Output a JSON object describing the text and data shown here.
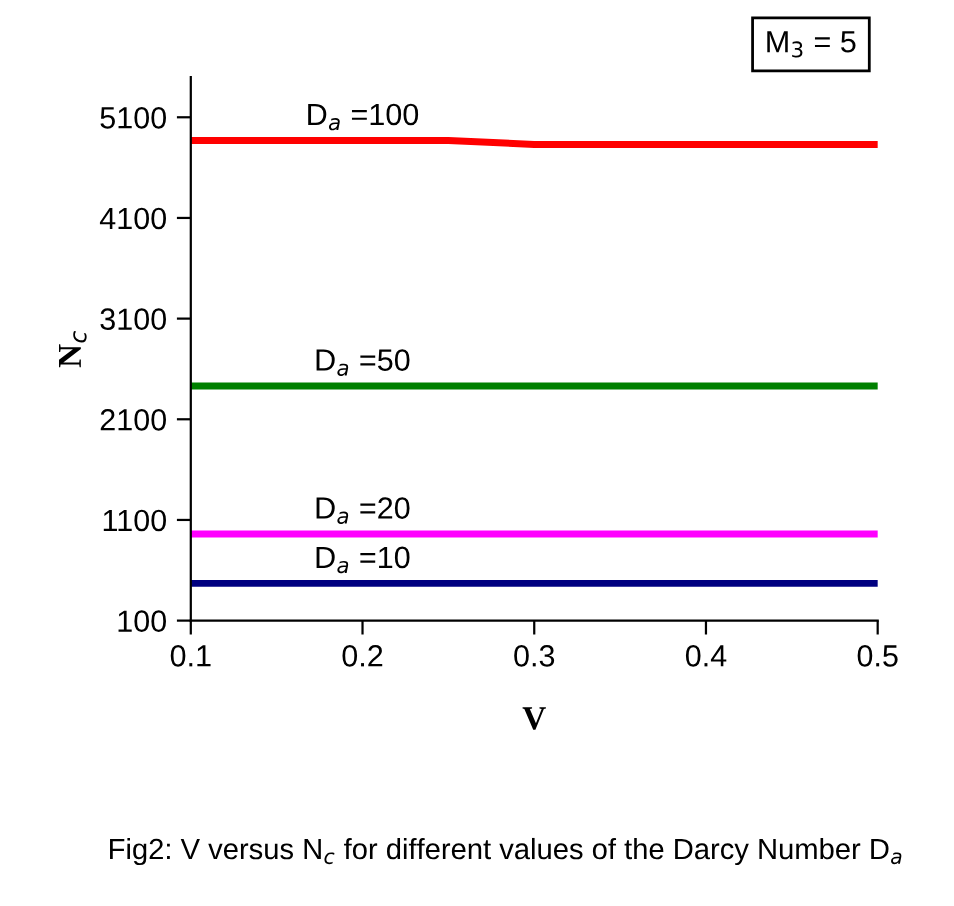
{
  "chart_data": {
    "type": "line",
    "xlabel": "V",
    "ylabel": "N$_{c}$",
    "x": [
      0.1,
      0.2,
      0.25,
      0.3,
      0.4,
      0.5
    ],
    "series": [
      {
        "name": "D$_{a}$ =100",
        "color": "#ff0000",
        "values": [
          4870,
          4870,
          4870,
          4830,
          4830,
          4830
        ]
      },
      {
        "name": "D$_{a}$ =50",
        "color": "#008000",
        "values": [
          2430,
          2430,
          2430,
          2430,
          2430,
          2430
        ]
      },
      {
        "name": "D$_{a}$ =20",
        "color": "#ff00ff",
        "values": [
          960,
          960,
          960,
          960,
          960,
          960
        ]
      },
      {
        "name": "D$_{a}$ =10",
        "color": "#000080",
        "values": [
          470,
          470,
          470,
          470,
          470,
          470
        ]
      }
    ],
    "xlim": [
      0.1,
      0.5
    ],
    "xticks": [
      0.1,
      0.2,
      0.3,
      0.4,
      0.5
    ],
    "ylim": [
      100,
      5500
    ],
    "yticks": [
      100,
      1100,
      2100,
      3100,
      4100,
      5100
    ],
    "grid": false,
    "legend": false,
    "marker": "none",
    "line_style": "solid",
    "annotations": [
      "M$_{3}$ = 5",
      "Fig2: V versus N$_{c}$ for different values of the Darcy Number D$_{a}$"
    ]
  }
}
